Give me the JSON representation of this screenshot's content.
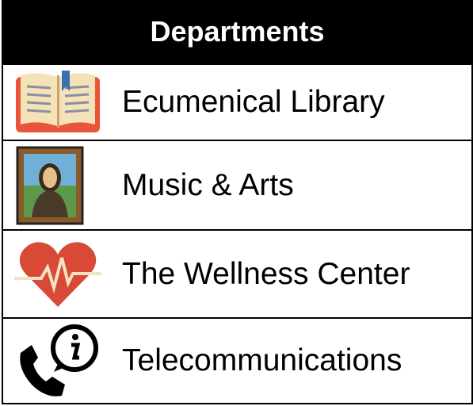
{
  "header": {
    "title": "Departments"
  },
  "items": [
    {
      "label": "Ecumenical Library"
    },
    {
      "label": "Music & Arts"
    },
    {
      "label": "The Wellness Center"
    },
    {
      "label": "Telecommunications"
    }
  ]
}
